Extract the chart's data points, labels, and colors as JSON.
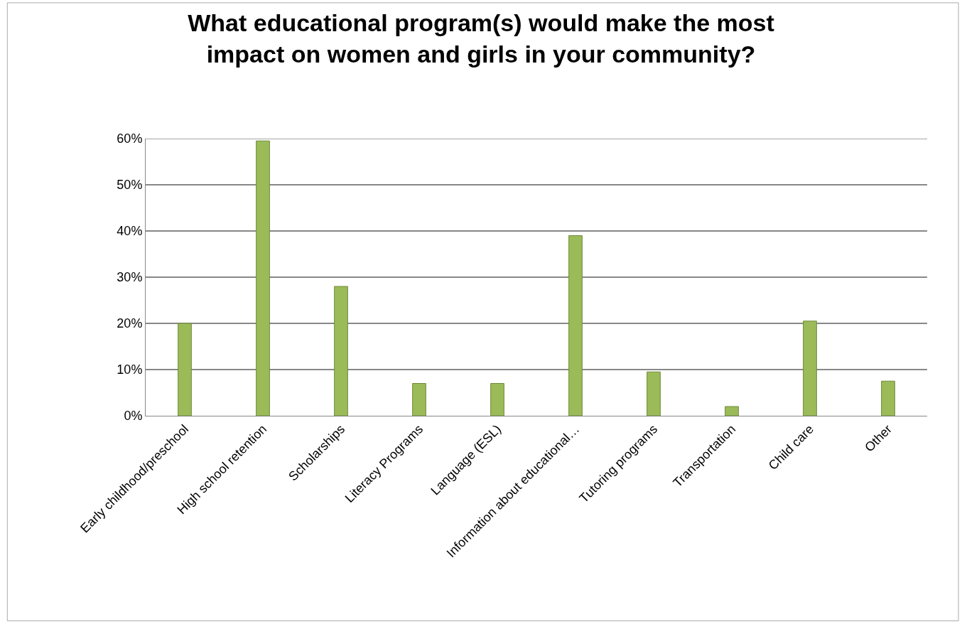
{
  "chart_data": {
    "type": "bar",
    "title": "What educational program(s) would make the most impact on women and girls in your community?",
    "categories": [
      "Early childhood/preschool",
      "High school retention",
      "Scholarships",
      "Literacy Programs",
      "Language (ESL)",
      "Information about educational…",
      "Tutoring programs",
      "Transportation",
      "Child care",
      "Other"
    ],
    "values": [
      20,
      59.5,
      28,
      7,
      7,
      39,
      9.5,
      2,
      20.5,
      7.5
    ],
    "color": "#9bbb59",
    "ylim": [
      0,
      60
    ],
    "yticks": [
      {
        "value": 0,
        "label": "0%"
      },
      {
        "value": 10,
        "label": "10%"
      },
      {
        "value": 20,
        "label": "20%"
      },
      {
        "value": 30,
        "label": "30%"
      },
      {
        "value": 40,
        "label": "40%"
      },
      {
        "value": 50,
        "label": "50%"
      },
      {
        "value": 60,
        "label": "60%"
      }
    ],
    "grid": "y"
  }
}
